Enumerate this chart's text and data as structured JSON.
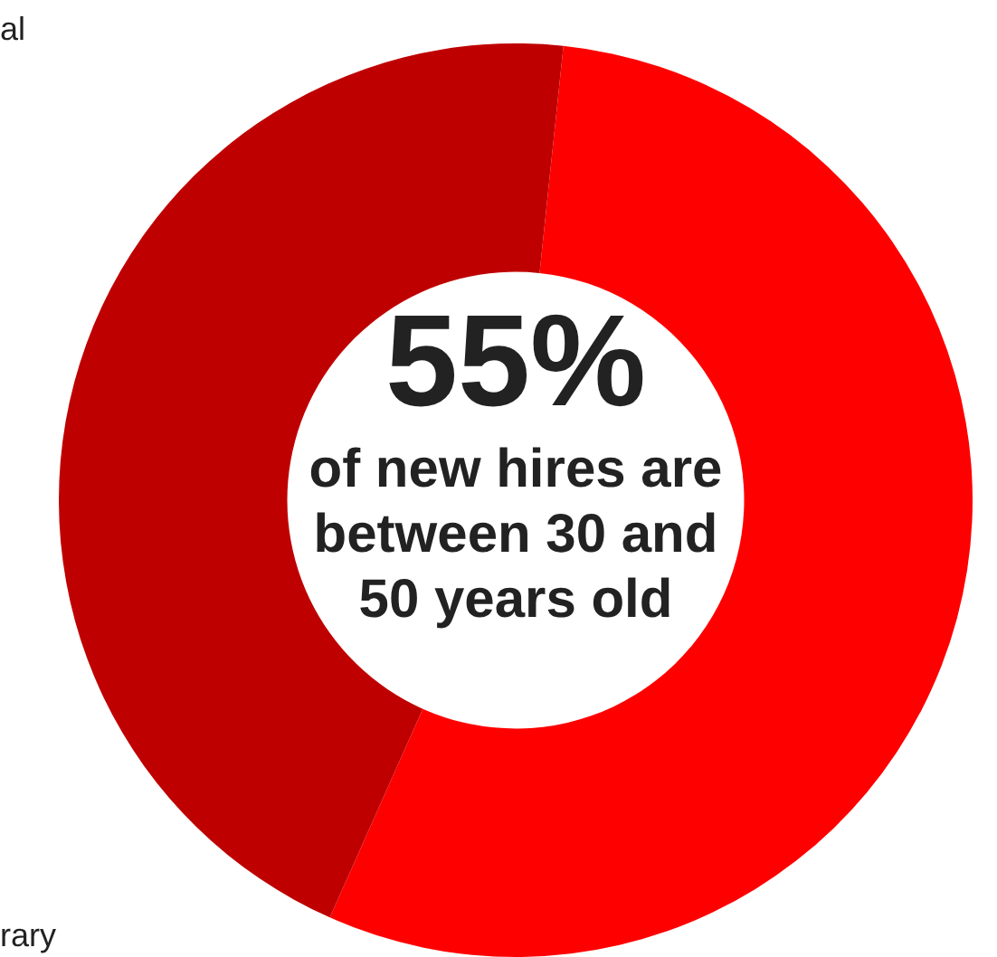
{
  "chart_data": {
    "type": "donut",
    "categories": [
      null,
      null
    ],
    "values": [
      55,
      45
    ],
    "colors": [
      "#fe0000",
      "#bf0000"
    ],
    "legend": false,
    "annotations": [
      "55%",
      "of new hires are between 30 and 50 years old",
      "al",
      "rary"
    ]
  }
}
